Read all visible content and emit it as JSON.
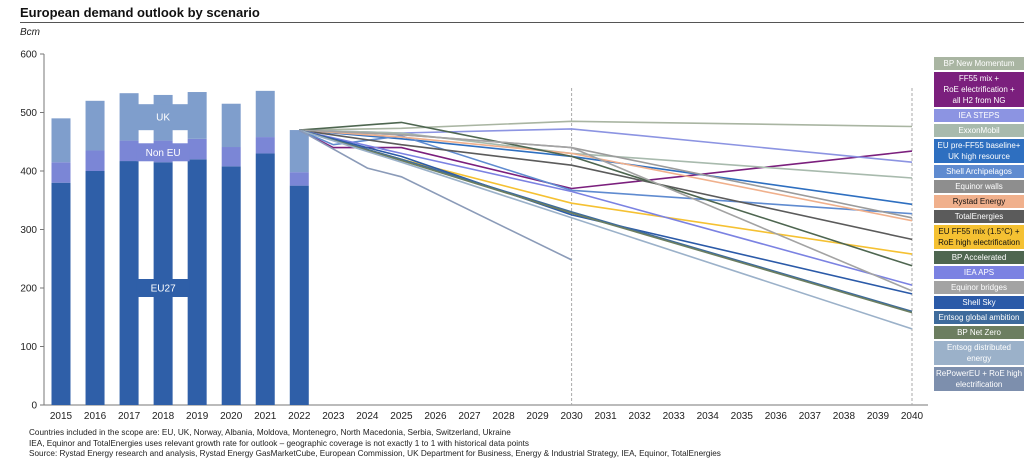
{
  "title": "European demand outlook by scenario",
  "unit": "Bcm",
  "notes": [
    "Countries included in the scope are: EU, UK, Norway, Albania, Moldova, Montenegro, North Macedonia, Serbia, Switzerland, Ukraine",
    "IEA, Equinor and TotalEnergies uses relevant growth rate for outlook – geographic coverage is not exactly 1 to 1 with historical data points",
    "Source: Rystad Energy research and analysis, Rystad Energy GasMarketCube, European Commission, UK Department for Business, Energy & Industrial Strategy, IEA, Equinor, TotalEnergies"
  ],
  "chart_data": {
    "type": "bar+line",
    "title": "European demand outlook by scenario",
    "ylabel": "Bcm",
    "ylim": [
      0,
      600
    ],
    "yticks": [
      "0",
      "100",
      "200",
      "300",
      "400",
      "500",
      "600"
    ],
    "xticks": [
      "2015",
      "2016",
      "2017",
      "2018",
      "2019",
      "2020",
      "2021",
      "2022",
      "2023",
      "2024",
      "2025",
      "2026",
      "2027",
      "2028",
      "2029",
      "2030",
      "2031",
      "2032",
      "2033",
      "2034",
      "2035",
      "2036",
      "2037",
      "2038",
      "2039",
      "2040"
    ],
    "bars": {
      "categories": [
        "2015",
        "2016",
        "2017",
        "2018",
        "2019",
        "2020",
        "2021",
        "2022"
      ],
      "series": [
        {
          "name": "EU27",
          "color": "#2f5fa8",
          "values": [
            380,
            400,
            417,
            415,
            420,
            408,
            430,
            375
          ]
        },
        {
          "name": "Non EU",
          "color": "#7b86d6",
          "values": [
            35,
            35,
            35,
            37,
            35,
            33,
            28,
            23
          ]
        },
        {
          "name": "UK",
          "color": "#7f9ecc",
          "values": [
            75,
            85,
            81,
            78,
            80,
            74,
            79,
            72
          ]
        }
      ]
    },
    "lines": [
      {
        "name": "BP New Momentum",
        "color": "#a9b5a2",
        "points": [
          [
            2022,
            470
          ],
          [
            2025,
            473
          ],
          [
            2030,
            485
          ],
          [
            2040,
            476
          ]
        ]
      },
      {
        "name": "FF55 mix + RoE electrification + all H2 from NG",
        "color": "#7b1f7d",
        "points": [
          [
            2022,
            470
          ],
          [
            2023,
            440
          ],
          [
            2025,
            440
          ],
          [
            2030,
            370
          ],
          [
            2040,
            434
          ]
        ]
      },
      {
        "name": "IEA STEPS",
        "color": "#8c94e2",
        "points": [
          [
            2022,
            470
          ],
          [
            2025,
            465
          ],
          [
            2030,
            472
          ],
          [
            2040,
            415
          ]
        ]
      },
      {
        "name": "ExxonMobil",
        "color": "#a8baad",
        "points": [
          [
            2022,
            470
          ],
          [
            2025,
            465
          ],
          [
            2030,
            430
          ],
          [
            2040,
            388
          ]
        ]
      },
      {
        "name": "EU pre-FF55 baseline+ UK high resource",
        "color": "#2e6fc0",
        "points": [
          [
            2022,
            470
          ],
          [
            2025,
            455
          ],
          [
            2030,
            425
          ],
          [
            2040,
            343
          ]
        ]
      },
      {
        "name": "Shell Archipelagos",
        "color": "#5f8bd0",
        "points": [
          [
            2022,
            470
          ],
          [
            2023,
            445
          ],
          [
            2025,
            460
          ],
          [
            2030,
            367
          ],
          [
            2040,
            327
          ]
        ]
      },
      {
        "name": "Equinor walls",
        "color": "#9b9b9b",
        "points": [
          [
            2022,
            470
          ],
          [
            2025,
            462
          ],
          [
            2030,
            440
          ],
          [
            2040,
            320
          ]
        ]
      },
      {
        "name": "Rystad Energy",
        "color": "#f0b08c",
        "points": [
          [
            2022,
            470
          ],
          [
            2025,
            458
          ],
          [
            2030,
            430
          ],
          [
            2040,
            315
          ]
        ]
      },
      {
        "name": "TotalEnergies",
        "color": "#5b5b5b",
        "points": [
          [
            2022,
            470
          ],
          [
            2025,
            445
          ],
          [
            2030,
            410
          ],
          [
            2040,
            283
          ]
        ]
      },
      {
        "name": "EU FF55 mix (1.5°C) + RoE high electrification",
        "color": "#f5c132",
        "points": [
          [
            2022,
            470
          ],
          [
            2025,
            420
          ],
          [
            2030,
            345
          ],
          [
            2040,
            258
          ]
        ]
      },
      {
        "name": "BP Accelerated",
        "color": "#4e6650",
        "points": [
          [
            2022,
            470
          ],
          [
            2025,
            483
          ],
          [
            2030,
            425
          ],
          [
            2040,
            238
          ]
        ]
      },
      {
        "name": "IEA APS",
        "color": "#7b82e2",
        "points": [
          [
            2022,
            470
          ],
          [
            2025,
            430
          ],
          [
            2030,
            365
          ],
          [
            2040,
            205
          ]
        ]
      },
      {
        "name": "Equinor bridges",
        "color": "#a3a3a3",
        "points": [
          [
            2022,
            470
          ],
          [
            2025,
            462
          ],
          [
            2030,
            440
          ],
          [
            2040,
            195
          ]
        ]
      },
      {
        "name": "Shell Sky",
        "color": "#2b5aa8",
        "points": [
          [
            2022,
            470
          ],
          [
            2025,
            425
          ],
          [
            2030,
            325
          ],
          [
            2040,
            190
          ]
        ]
      },
      {
        "name": "Entsog global ambition",
        "color": "#3e6b9c",
        "points": [
          [
            2022,
            470
          ],
          [
            2025,
            420
          ],
          [
            2030,
            330
          ],
          [
            2040,
            160
          ]
        ]
      },
      {
        "name": "BP Net Zero",
        "color": "#6c7e60",
        "points": [
          [
            2022,
            470
          ],
          [
            2025,
            418
          ],
          [
            2030,
            328
          ],
          [
            2040,
            158
          ]
        ]
      },
      {
        "name": "Entsog distributed energy",
        "color": "#9bb1c9",
        "points": [
          [
            2022,
            470
          ],
          [
            2025,
            415
          ],
          [
            2030,
            320
          ],
          [
            2040,
            130
          ]
        ]
      },
      {
        "name": "RePowerEU + RoE high electrification",
        "color": "#8b9bb8",
        "points": [
          [
            2022,
            470
          ],
          [
            2024,
            405
          ],
          [
            2025,
            390
          ],
          [
            2030,
            248
          ]
        ]
      }
    ],
    "annotations": [
      "UK",
      "Non EU",
      "EU27"
    ],
    "reference_lines_x": [
      2030,
      2040
    ]
  },
  "legend": [
    {
      "label": "BP New Momentum",
      "bg": "#a9b5a2",
      "dark": false
    },
    {
      "label": "FF55 mix + RoE electrification + all H2 from NG",
      "bg": "#7b1f7d",
      "dark": false,
      "lines": [
        "FF55 mix +",
        "RoE electrification +",
        "all H2 from NG"
      ]
    },
    {
      "label": "IEA STEPS",
      "bg": "#8c94e2",
      "dark": false
    },
    {
      "label": "ExxonMobil",
      "bg": "#a8baad",
      "dark": false
    },
    {
      "label": "EU pre-FF55 baseline+ UK high resource",
      "bg": "#2e6fc0",
      "dark": false,
      "lines": [
        "EU pre-FF55 baseline+",
        "UK high resource"
      ]
    },
    {
      "label": "Shell Archipelagos",
      "bg": "#5f8bd0",
      "dark": false
    },
    {
      "label": "Equinor walls",
      "bg": "#8e8e8e",
      "dark": false
    },
    {
      "label": "Rystad Energy",
      "bg": "#f0b08c",
      "dark": true
    },
    {
      "label": "TotalEnergies",
      "bg": "#5b5b5b",
      "dark": false
    },
    {
      "label": "EU FF55 mix (1.5°C) + RoE high electrification",
      "bg": "#f5c132",
      "dark": true,
      "lines": [
        "EU FF55 mix (1.5°C) +",
        "RoE high electrification"
      ]
    },
    {
      "label": "BP Accelerated",
      "bg": "#4e6650",
      "dark": false
    },
    {
      "label": "IEA APS",
      "bg": "#7b82e2",
      "dark": false
    },
    {
      "label": "Equinor bridges",
      "bg": "#a3a3a3",
      "dark": false
    },
    {
      "label": "Shell Sky",
      "bg": "#2b5aa8",
      "dark": false
    },
    {
      "label": "Entsog global ambition",
      "bg": "#3e6b9c",
      "dark": false
    },
    {
      "label": "BP Net Zero",
      "bg": "#6c7e60",
      "dark": false
    },
    {
      "label": "Entsog distributed energy",
      "bg": "#9bb1c9",
      "dark": false,
      "lines": [
        "Entsog distributed",
        "energy"
      ]
    },
    {
      "label": "RePowerEU + RoE high electrification",
      "bg": "#7d8fad",
      "dark": false,
      "lines": [
        "RePowerEU + RoE high",
        "electrification"
      ]
    }
  ]
}
